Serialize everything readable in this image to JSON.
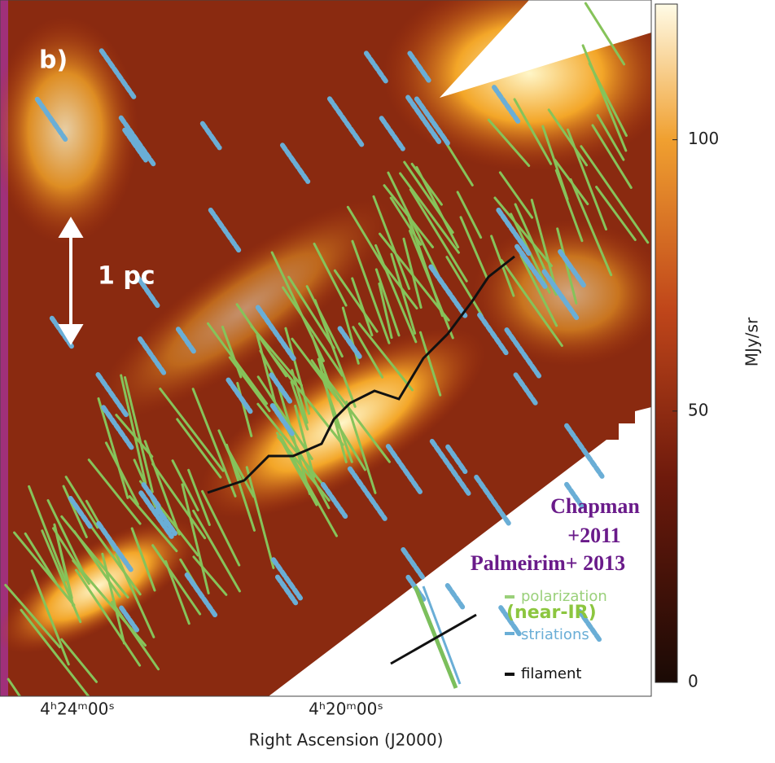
{
  "chart_data": {
    "type": "image",
    "panel_label": "b)",
    "scale_bar": "1 pc",
    "x_label": "Right Ascension (J2000)",
    "x_tick_labels": [
      "4ʰ24ᵐ00ˢ",
      "4ʰ20ᵐ00ˢ"
    ],
    "colorbar": {
      "label": "MJy/sr",
      "lim": [
        0,
        125
      ],
      "ticks": [
        0,
        50,
        100
      ]
    },
    "legend": [
      "polarization",
      "(near-IR)",
      "striations",
      "filament"
    ],
    "annotations": [
      "Chapman",
      "+2011",
      "Palmeirim+ 2013"
    ]
  }
}
